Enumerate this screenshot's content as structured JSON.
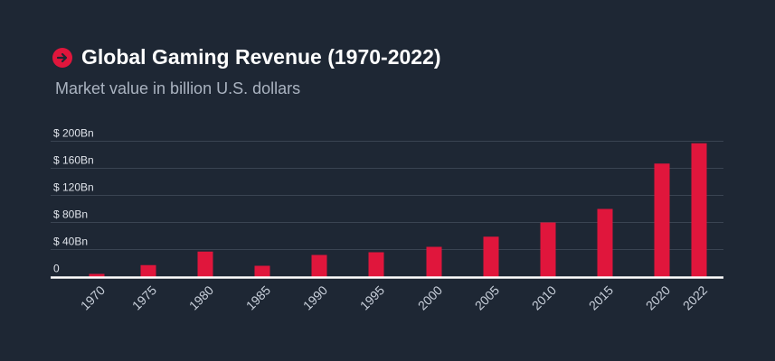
{
  "chart_data": {
    "type": "bar",
    "title": "Global Gaming Revenue (1970-2022)",
    "subtitle": "Market value in billion U.S. dollars",
    "categories": [
      "1970",
      "1975",
      "1980",
      "1985",
      "1990",
      "1995",
      "2000",
      "2005",
      "2010",
      "2015",
      "2020",
      "2022"
    ],
    "values": [
      4,
      17,
      37,
      16,
      32,
      36,
      44,
      59,
      80,
      100,
      167,
      197
    ],
    "unit": "billion U.S. dollars",
    "ylim": [
      0,
      200
    ],
    "yticks": [
      0,
      40,
      80,
      120,
      160,
      200
    ],
    "ytick_labels": [
      "0",
      "$ 40Bn",
      "$ 80Bn",
      "$ 120Bn",
      "$ 160Bn",
      "$ 200Bn"
    ],
    "grid": true,
    "colors": {
      "bar": "#e0163c",
      "background": "#1e2734",
      "grid": "#3a4452",
      "axis": "#ffffff"
    },
    "title_icon": "arrow-right-circle-icon"
  }
}
